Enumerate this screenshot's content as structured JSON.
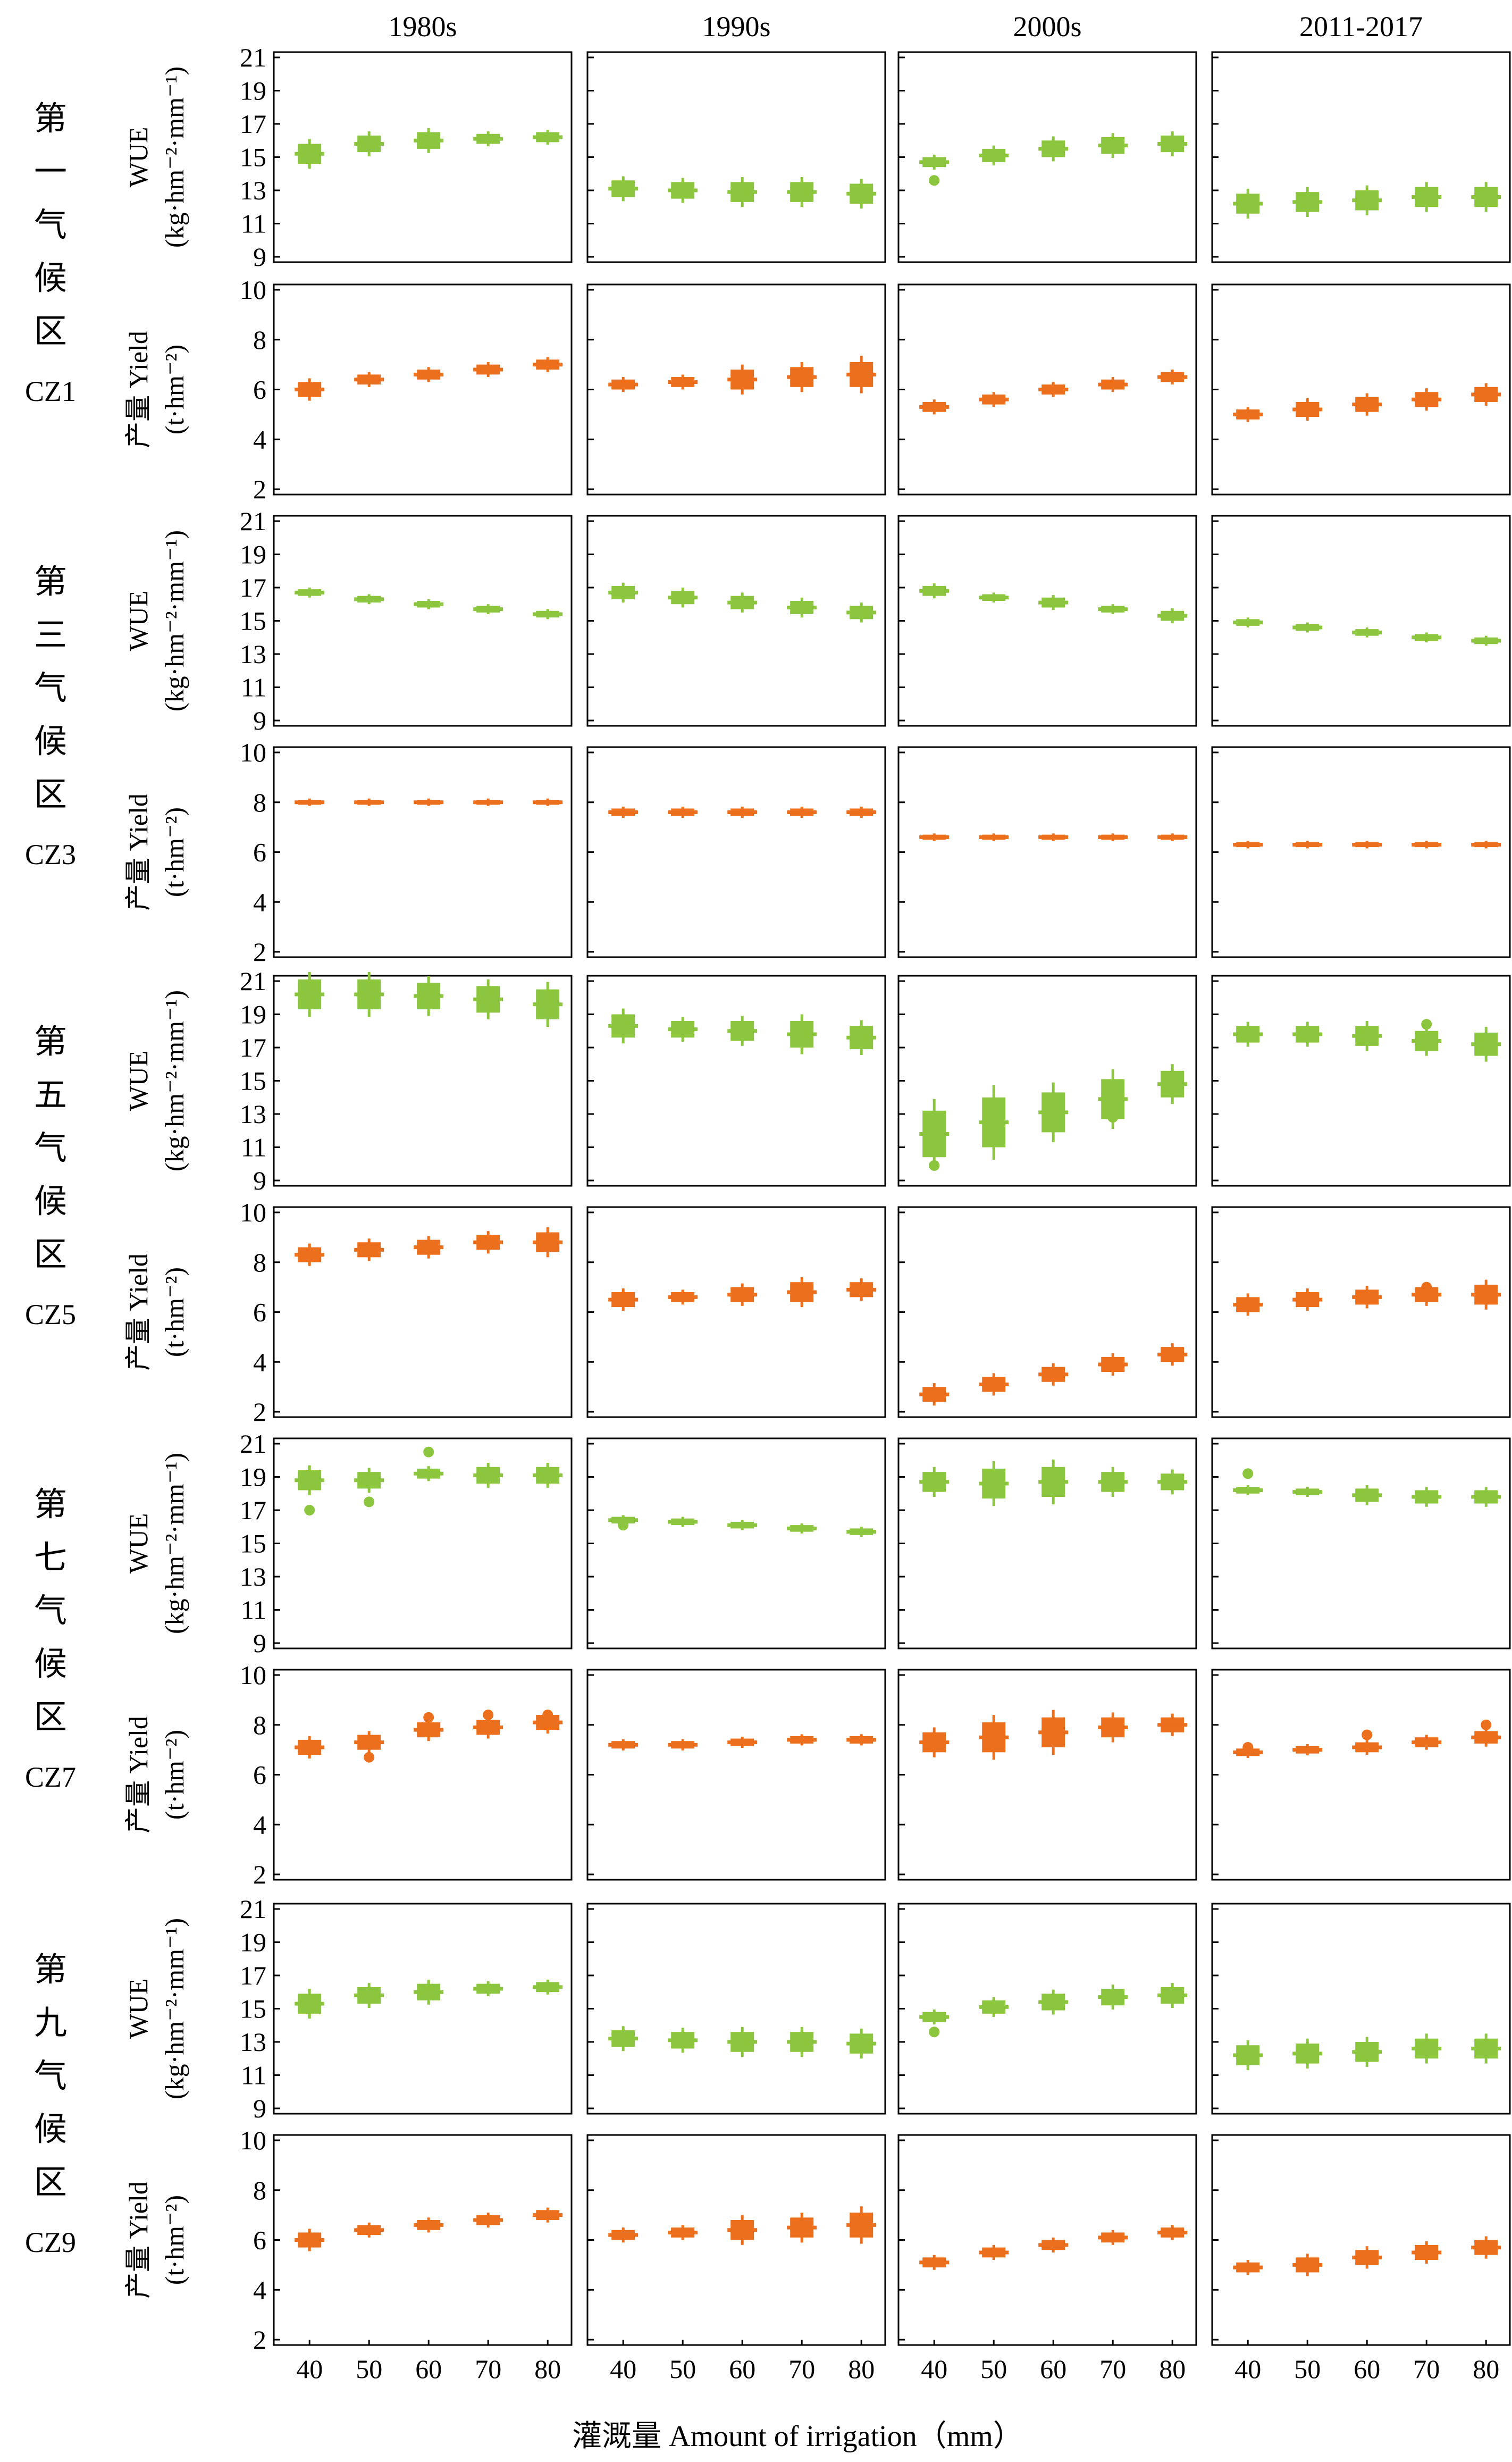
{
  "figure": {
    "periods": [
      "1980s",
      "1990s",
      "2000s",
      "2011-2017"
    ],
    "x_axis_label": "灌溉量 Amount of irrigation（mm）",
    "colors": {
      "wue": "#8cc63f",
      "yield": "#ec6f1d",
      "axis": "#000000"
    }
  },
  "zones": [
    {
      "id": "CZ1",
      "label_cn": [
        "第",
        "一",
        "气",
        "候",
        "区"
      ],
      "label_en": "CZ1"
    },
    {
      "id": "CZ3",
      "label_cn": [
        "第",
        "三",
        "气",
        "候",
        "区"
      ],
      "label_en": "CZ3"
    },
    {
      "id": "CZ5",
      "label_cn": [
        "第",
        "五",
        "气",
        "候",
        "区"
      ],
      "label_en": "CZ5"
    },
    {
      "id": "CZ7",
      "label_cn": [
        "第",
        "七",
        "气",
        "候",
        "区"
      ],
      "label_en": "CZ7"
    },
    {
      "id": "CZ9",
      "label_cn": [
        "第",
        "九",
        "气",
        "候",
        "区"
      ],
      "label_en": "CZ9"
    }
  ],
  "ylabels": {
    "wue": {
      "line1": "WUE",
      "line2": "(kg·hm⁻²·mm⁻¹)"
    },
    "yield": {
      "line1": "产量 Yield",
      "line2": "(t·hm⁻²)"
    }
  },
  "chart_data": {
    "type": "box",
    "x": [
      40,
      50,
      60,
      70,
      80
    ],
    "xlabel": "灌溉量 Amount of irrigation（mm）",
    "wue_axis": {
      "ylim": [
        9,
        21
      ],
      "ticks": [
        9,
        11,
        13,
        15,
        17,
        19,
        21
      ]
    },
    "yield_axis": {
      "ylim": [
        2,
        10
      ],
      "ticks": [
        2,
        4,
        6,
        8,
        10
      ]
    },
    "panels": [
      {
        "zone": "CZ1",
        "var": "wue",
        "period": "1980s",
        "median": [
          15.2,
          15.8,
          16.0,
          16.1,
          16.2
        ],
        "spread": [
          0.6,
          0.5,
          0.5,
          0.3,
          0.3
        ],
        "outliers": []
      },
      {
        "zone": "CZ1",
        "var": "wue",
        "period": "1990s",
        "median": [
          13.1,
          13.0,
          12.9,
          12.9,
          12.8
        ],
        "spread": [
          0.5,
          0.5,
          0.6,
          0.6,
          0.6
        ],
        "outliers": []
      },
      {
        "zone": "CZ1",
        "var": "wue",
        "period": "2000s",
        "median": [
          14.7,
          15.1,
          15.5,
          15.7,
          15.8
        ],
        "spread": [
          0.3,
          0.4,
          0.5,
          0.5,
          0.5
        ],
        "outliers": [
          [
            40,
            13.6
          ]
        ]
      },
      {
        "zone": "CZ1",
        "var": "wue",
        "period": "2011-2017",
        "median": [
          12.2,
          12.3,
          12.4,
          12.6,
          12.6
        ],
        "spread": [
          0.6,
          0.6,
          0.6,
          0.6,
          0.6
        ],
        "outliers": []
      },
      {
        "zone": "CZ1",
        "var": "yield",
        "period": "1980s",
        "median": [
          6.0,
          6.4,
          6.6,
          6.8,
          7.0
        ],
        "spread": [
          0.3,
          0.2,
          0.2,
          0.2,
          0.2
        ],
        "outliers": []
      },
      {
        "zone": "CZ1",
        "var": "yield",
        "period": "1990s",
        "median": [
          6.2,
          6.3,
          6.4,
          6.5,
          6.6
        ],
        "spread": [
          0.2,
          0.2,
          0.4,
          0.4,
          0.5
        ],
        "outliers": []
      },
      {
        "zone": "CZ1",
        "var": "yield",
        "period": "2000s",
        "median": [
          5.3,
          5.6,
          6.0,
          6.2,
          6.5
        ],
        "spread": [
          0.2,
          0.2,
          0.2,
          0.2,
          0.2
        ],
        "outliers": []
      },
      {
        "zone": "CZ1",
        "var": "yield",
        "period": "2011-2017",
        "median": [
          5.0,
          5.2,
          5.4,
          5.6,
          5.8
        ],
        "spread": [
          0.2,
          0.3,
          0.3,
          0.3,
          0.3
        ],
        "outliers": []
      },
      {
        "zone": "CZ3",
        "var": "wue",
        "period": "1980s",
        "median": [
          16.7,
          16.3,
          16.0,
          15.7,
          15.4
        ],
        "spread": [
          0.2,
          0.2,
          0.2,
          0.2,
          0.2
        ],
        "outliers": []
      },
      {
        "zone": "CZ3",
        "var": "wue",
        "period": "1990s",
        "median": [
          16.7,
          16.4,
          16.1,
          15.8,
          15.5
        ],
        "spread": [
          0.4,
          0.4,
          0.4,
          0.4,
          0.4
        ],
        "outliers": []
      },
      {
        "zone": "CZ3",
        "var": "wue",
        "period": "2000s",
        "median": [
          16.8,
          16.4,
          16.1,
          15.7,
          15.3
        ],
        "spread": [
          0.3,
          0.2,
          0.3,
          0.2,
          0.3
        ],
        "outliers": []
      },
      {
        "zone": "CZ3",
        "var": "wue",
        "period": "2011-2017",
        "median": [
          14.9,
          14.6,
          14.3,
          14.0,
          13.8
        ],
        "spread": [
          0.2,
          0.2,
          0.2,
          0.2,
          0.2
        ],
        "outliers": []
      },
      {
        "zone": "CZ3",
        "var": "yield",
        "period": "1980s",
        "median": [
          8.0,
          8.0,
          8.0,
          8.0,
          8.0
        ],
        "spread": [
          0.1,
          0.1,
          0.1,
          0.1,
          0.1
        ],
        "outliers": []
      },
      {
        "zone": "CZ3",
        "var": "yield",
        "period": "1990s",
        "median": [
          7.6,
          7.6,
          7.6,
          7.6,
          7.6
        ],
        "spread": [
          0.15,
          0.15,
          0.15,
          0.15,
          0.15
        ],
        "outliers": []
      },
      {
        "zone": "CZ3",
        "var": "yield",
        "period": "2000s",
        "median": [
          6.6,
          6.6,
          6.6,
          6.6,
          6.6
        ],
        "spread": [
          0.1,
          0.1,
          0.1,
          0.1,
          0.1
        ],
        "outliers": []
      },
      {
        "zone": "CZ3",
        "var": "yield",
        "period": "2011-2017",
        "median": [
          6.3,
          6.3,
          6.3,
          6.3,
          6.3
        ],
        "spread": [
          0.1,
          0.1,
          0.1,
          0.1,
          0.1
        ],
        "outliers": []
      },
      {
        "zone": "CZ5",
        "var": "wue",
        "period": "1980s",
        "median": [
          20.2,
          20.2,
          20.1,
          19.9,
          19.6
        ],
        "spread": [
          0.9,
          0.9,
          0.8,
          0.8,
          0.9
        ],
        "outliers": []
      },
      {
        "zone": "CZ5",
        "var": "wue",
        "period": "1990s",
        "median": [
          18.3,
          18.1,
          18.0,
          17.8,
          17.6
        ],
        "spread": [
          0.7,
          0.5,
          0.6,
          0.8,
          0.7
        ],
        "outliers": []
      },
      {
        "zone": "CZ5",
        "var": "wue",
        "period": "2000s",
        "median": [
          11.8,
          12.5,
          13.1,
          13.9,
          14.8
        ],
        "spread": [
          1.4,
          1.5,
          1.2,
          1.2,
          0.8
        ],
        "outliers": [
          [
            40,
            9.9
          ],
          [
            70,
            12.8
          ]
        ]
      },
      {
        "zone": "CZ5",
        "var": "wue",
        "period": "2011-2017",
        "median": [
          17.8,
          17.8,
          17.7,
          17.4,
          17.2
        ],
        "spread": [
          0.5,
          0.5,
          0.6,
          0.6,
          0.7
        ],
        "outliers": [
          [
            70,
            18.4
          ]
        ]
      },
      {
        "zone": "CZ5",
        "var": "yield",
        "period": "1980s",
        "median": [
          8.3,
          8.5,
          8.6,
          8.8,
          8.8
        ],
        "spread": [
          0.3,
          0.3,
          0.3,
          0.3,
          0.4
        ],
        "outliers": []
      },
      {
        "zone": "CZ5",
        "var": "yield",
        "period": "1990s",
        "median": [
          6.5,
          6.6,
          6.7,
          6.8,
          6.9
        ],
        "spread": [
          0.3,
          0.2,
          0.3,
          0.4,
          0.3
        ],
        "outliers": []
      },
      {
        "zone": "CZ5",
        "var": "yield",
        "period": "2000s",
        "median": [
          2.7,
          3.1,
          3.5,
          3.9,
          4.3
        ],
        "spread": [
          0.3,
          0.3,
          0.3,
          0.3,
          0.3
        ],
        "outliers": []
      },
      {
        "zone": "CZ5",
        "var": "yield",
        "period": "2011-2017",
        "median": [
          6.3,
          6.5,
          6.6,
          6.7,
          6.7
        ],
        "spread": [
          0.3,
          0.3,
          0.3,
          0.3,
          0.4
        ],
        "outliers": [
          [
            70,
            7.0
          ]
        ]
      },
      {
        "zone": "CZ7",
        "var": "wue",
        "period": "1980s",
        "median": [
          18.8,
          18.8,
          19.2,
          19.1,
          19.1
        ],
        "spread": [
          0.6,
          0.5,
          0.3,
          0.5,
          0.5
        ],
        "outliers": [
          [
            40,
            17.0
          ],
          [
            50,
            17.5
          ],
          [
            60,
            20.5
          ]
        ]
      },
      {
        "zone": "CZ7",
        "var": "wue",
        "period": "1990s",
        "median": [
          16.4,
          16.3,
          16.1,
          15.9,
          15.7
        ],
        "spread": [
          0.2,
          0.2,
          0.2,
          0.2,
          0.2
        ],
        "outliers": [
          [
            40,
            16.1
          ]
        ]
      },
      {
        "zone": "CZ7",
        "var": "wue",
        "period": "2000s",
        "median": [
          18.7,
          18.6,
          18.7,
          18.7,
          18.7
        ],
        "spread": [
          0.6,
          0.9,
          0.9,
          0.6,
          0.5
        ],
        "outliers": []
      },
      {
        "zone": "CZ7",
        "var": "wue",
        "period": "2011-2017",
        "median": [
          18.2,
          18.1,
          17.9,
          17.8,
          17.8
        ],
        "spread": [
          0.2,
          0.2,
          0.4,
          0.4,
          0.4
        ],
        "outliers": [
          [
            40,
            19.2
          ]
        ]
      },
      {
        "zone": "CZ7",
        "var": "yield",
        "period": "1980s",
        "median": [
          7.1,
          7.3,
          7.8,
          7.9,
          8.1
        ],
        "spread": [
          0.3,
          0.3,
          0.3,
          0.3,
          0.3
        ],
        "outliers": [
          [
            50,
            6.7
          ],
          [
            60,
            8.3
          ],
          [
            70,
            8.4
          ],
          [
            80,
            8.4
          ]
        ]
      },
      {
        "zone": "CZ7",
        "var": "yield",
        "period": "1990s",
        "median": [
          7.2,
          7.2,
          7.3,
          7.4,
          7.4
        ],
        "spread": [
          0.15,
          0.15,
          0.15,
          0.15,
          0.15
        ],
        "outliers": []
      },
      {
        "zone": "CZ7",
        "var": "yield",
        "period": "2000s",
        "median": [
          7.3,
          7.5,
          7.7,
          7.9,
          8.0
        ],
        "spread": [
          0.4,
          0.6,
          0.6,
          0.4,
          0.3
        ],
        "outliers": []
      },
      {
        "zone": "CZ7",
        "var": "yield",
        "period": "2011-2017",
        "median": [
          6.9,
          7.0,
          7.1,
          7.3,
          7.5
        ],
        "spread": [
          0.15,
          0.15,
          0.2,
          0.2,
          0.25
        ],
        "outliers": [
          [
            40,
            7.1
          ],
          [
            60,
            7.6
          ],
          [
            80,
            8.0
          ]
        ]
      },
      {
        "zone": "CZ9",
        "var": "wue",
        "period": "1980s",
        "median": [
          15.3,
          15.8,
          16.0,
          16.2,
          16.3
        ],
        "spread": [
          0.6,
          0.5,
          0.5,
          0.3,
          0.3
        ],
        "outliers": []
      },
      {
        "zone": "CZ9",
        "var": "wue",
        "period": "1990s",
        "median": [
          13.2,
          13.1,
          13.0,
          13.0,
          12.9
        ],
        "spread": [
          0.5,
          0.5,
          0.6,
          0.6,
          0.6
        ],
        "outliers": []
      },
      {
        "zone": "CZ9",
        "var": "wue",
        "period": "2000s",
        "median": [
          14.5,
          15.1,
          15.4,
          15.7,
          15.8
        ],
        "spread": [
          0.3,
          0.4,
          0.5,
          0.5,
          0.5
        ],
        "outliers": [
          [
            40,
            13.6
          ]
        ]
      },
      {
        "zone": "CZ9",
        "var": "wue",
        "period": "2011-2017",
        "median": [
          12.2,
          12.3,
          12.4,
          12.6,
          12.6
        ],
        "spread": [
          0.6,
          0.6,
          0.6,
          0.6,
          0.6
        ],
        "outliers": []
      },
      {
        "zone": "CZ9",
        "var": "yield",
        "period": "1980s",
        "median": [
          6.0,
          6.4,
          6.6,
          6.8,
          7.0
        ],
        "spread": [
          0.3,
          0.2,
          0.2,
          0.2,
          0.2
        ],
        "outliers": []
      },
      {
        "zone": "CZ9",
        "var": "yield",
        "period": "1990s",
        "median": [
          6.2,
          6.3,
          6.4,
          6.5,
          6.6
        ],
        "spread": [
          0.2,
          0.2,
          0.4,
          0.4,
          0.5
        ],
        "outliers": []
      },
      {
        "zone": "CZ9",
        "var": "yield",
        "period": "2000s",
        "median": [
          5.1,
          5.5,
          5.8,
          6.1,
          6.3
        ],
        "spread": [
          0.2,
          0.2,
          0.2,
          0.2,
          0.2
        ],
        "outliers": []
      },
      {
        "zone": "CZ9",
        "var": "yield",
        "period": "2011-2017",
        "median": [
          4.9,
          5.0,
          5.3,
          5.5,
          5.7
        ],
        "spread": [
          0.2,
          0.3,
          0.3,
          0.3,
          0.3
        ],
        "outliers": []
      }
    ]
  }
}
